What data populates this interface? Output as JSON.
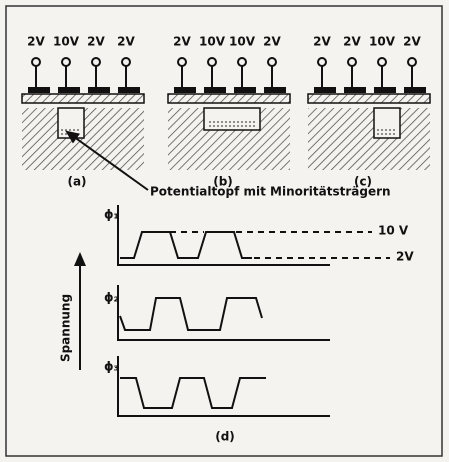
{
  "panels": [
    {
      "voltages": [
        "2V",
        "10V",
        "2V",
        "2V"
      ],
      "label": "(a)"
    },
    {
      "voltages": [
        "2V",
        "10V",
        "10V",
        "2V"
      ],
      "label": "(b)"
    },
    {
      "voltages": [
        "2V",
        "2V",
        "10V",
        "2V"
      ],
      "label": "(c)"
    }
  ],
  "annotation": "Potentialtopf mit Minoritätsträgern",
  "waveforms": {
    "phases": [
      "ϕ₁",
      "ϕ₂",
      "ϕ₃"
    ],
    "high_label": "10 V",
    "low_label": "2V",
    "axis_label": "Spannung",
    "label": "(d)"
  }
}
